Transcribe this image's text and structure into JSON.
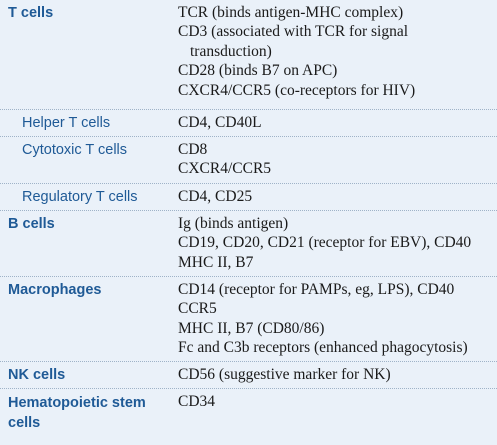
{
  "rows": [
    {
      "cell": "T cells",
      "style": "bold",
      "markers": [
        {
          "text": "TCR (binds antigen-MHC complex)"
        },
        {
          "text": "CD3 (associated with TCR for signal"
        },
        {
          "text": "transduction)",
          "indent": true
        },
        {
          "text": "CD28 (binds B7 on APC)"
        },
        {
          "text": "CXCR4/CCR5 (co-receptors for HIV)"
        }
      ]
    },
    {
      "cell": "Helper T cells",
      "style": "sub",
      "markers": [
        {
          "text": "CD4, CD40L"
        }
      ]
    },
    {
      "cell": "Cytotoxic T cells",
      "style": "sub",
      "markers": [
        {
          "text": "CD8"
        },
        {
          "text": "CXCR4/CCR5"
        }
      ]
    },
    {
      "cell": "Regulatory T cells",
      "style": "sub",
      "markers": [
        {
          "text": "CD4, CD25"
        }
      ]
    },
    {
      "cell": "B cells",
      "style": "bold",
      "markers": [
        {
          "text": "Ig (binds antigen)"
        },
        {
          "text": "CD19, CD20, CD21 (receptor for EBV), CD40"
        },
        {
          "text": "MHC II, B7"
        }
      ]
    },
    {
      "cell": "Macrophages",
      "style": "bold",
      "markers": [
        {
          "text": "CD14 (receptor for PAMPs, eg, LPS), CD40"
        },
        {
          "text": "CCR5"
        },
        {
          "text": "MHC II, B7 (CD80/86)"
        },
        {
          "text": "Fc and C3b receptors (enhanced phagocytosis)"
        }
      ]
    },
    {
      "cell": "NK cells",
      "style": "bold",
      "markers": [
        {
          "text": "CD56 (suggestive marker for NK)"
        }
      ]
    },
    {
      "cell": "Hematopoietic stem cells",
      "style": "bold",
      "markers": [
        {
          "text": "CD34"
        }
      ]
    }
  ]
}
